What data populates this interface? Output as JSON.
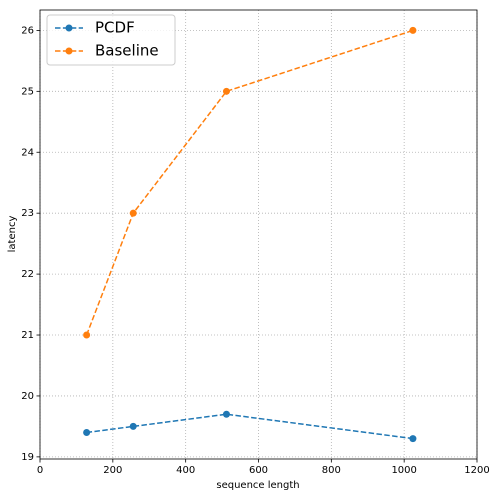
{
  "chart_data": {
    "type": "line",
    "x_label": "sequence length",
    "y_label": "latency",
    "x": [
      128,
      256,
      512,
      1024
    ],
    "series": [
      {
        "name": "PCDF",
        "color": "#1f77b4",
        "values": [
          19.4,
          19.5,
          19.7,
          19.3
        ]
      },
      {
        "name": "Baseline",
        "color": "#ff7f0e",
        "values": [
          21,
          23,
          25,
          26
        ]
      }
    ],
    "xlim": [
      0,
      1200
    ],
    "xticks": [
      0,
      200,
      400,
      600,
      800,
      1000,
      1200
    ],
    "ylim": [
      18.965,
      26.335
    ],
    "yticks": [
      19,
      20,
      21,
      22,
      23,
      24,
      25,
      26
    ],
    "grid": true,
    "legend": "upper left",
    "line_style": "dashed",
    "marker": "circle"
  }
}
